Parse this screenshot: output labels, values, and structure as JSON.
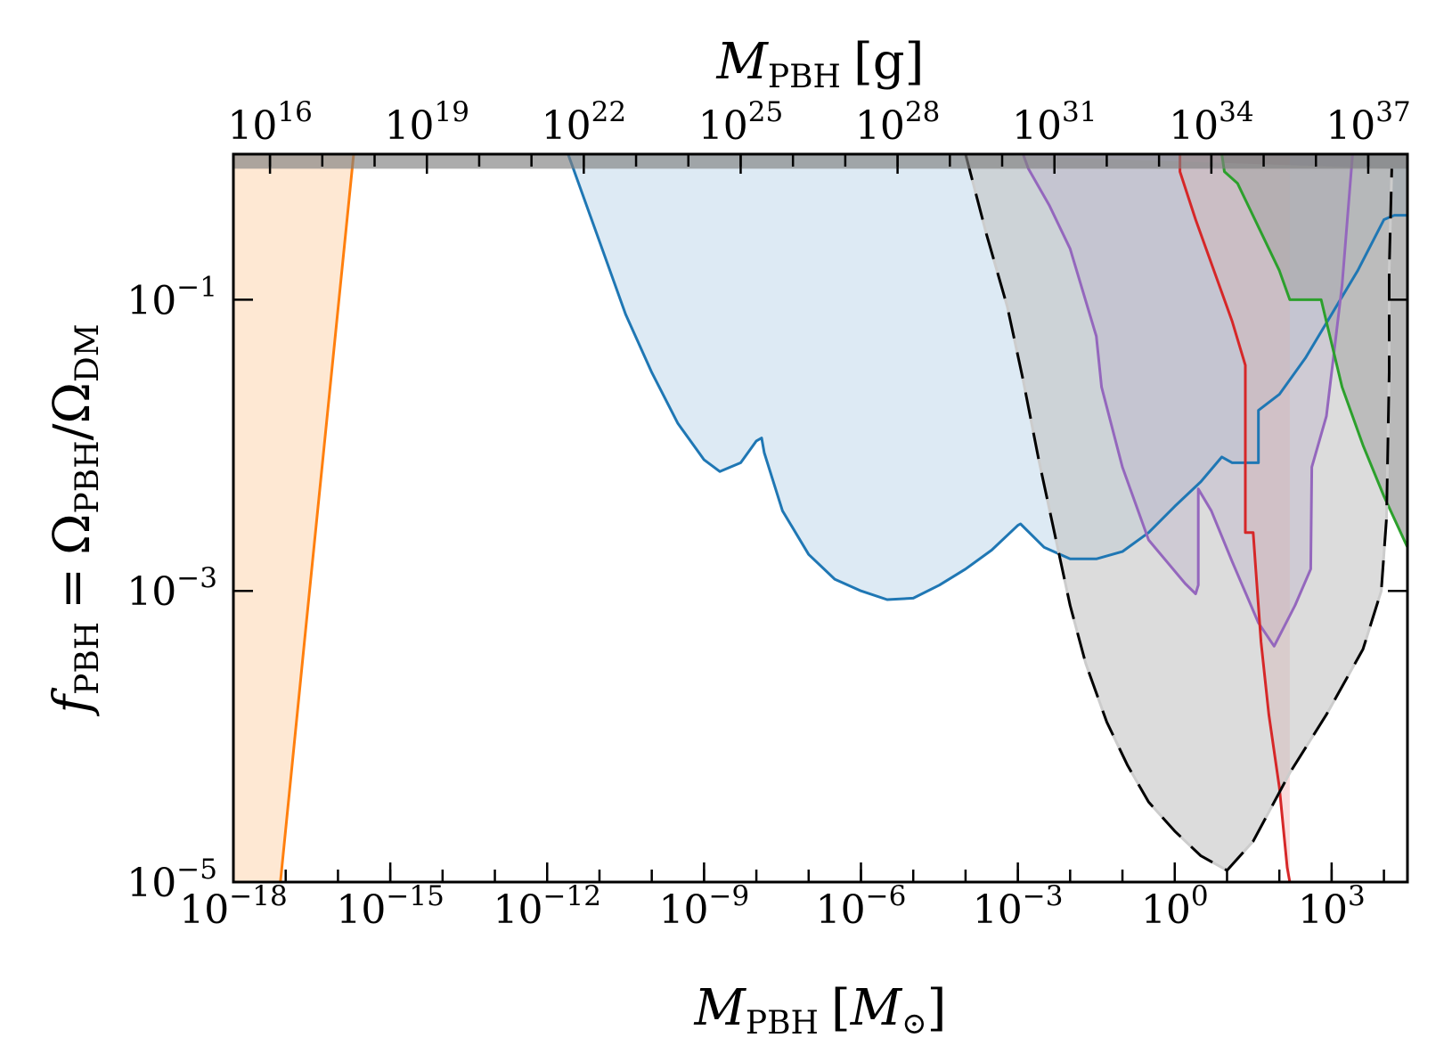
{
  "chart_data": {
    "type": "area",
    "xlabel_bottom": {
      "main": "M",
      "sub": "PBH",
      "unit_open": "[",
      "unit": "M",
      "unit_sub": "⊙",
      "unit_close": "]"
    },
    "xlabel_top": {
      "main": "M",
      "sub": "PBH",
      "unit": "[g]"
    },
    "ylabel": {
      "f": "f",
      "f_sub": "PBH",
      "eq": "=",
      "omega1": "Ω",
      "omega1_sub": "PBH",
      "slash": "/",
      "omega2": "Ω",
      "omega2_sub": "DM"
    },
    "x_scale": "log",
    "y_scale": "log",
    "x_range_log10": [
      -18,
      4.45
    ],
    "y_range_log10": [
      -5,
      0
    ],
    "x_top_offset_log10": 33.3,
    "grid": false,
    "x_ticks_bottom": [
      {
        "base": "10",
        "exp": "−18",
        "log": -18
      },
      {
        "base": "10",
        "exp": "−15",
        "log": -15
      },
      {
        "base": "10",
        "exp": "−12",
        "log": -12
      },
      {
        "base": "10",
        "exp": "−9",
        "log": -9
      },
      {
        "base": "10",
        "exp": "−6",
        "log": -6
      },
      {
        "base": "10",
        "exp": "−3",
        "log": -3
      },
      {
        "base": "10",
        "exp": "0",
        "log": 0
      },
      {
        "base": "10",
        "exp": "3",
        "log": 3
      }
    ],
    "x_ticks_top": [
      {
        "base": "10",
        "exp": "16",
        "log": 16
      },
      {
        "base": "10",
        "exp": "19",
        "log": 19
      },
      {
        "base": "10",
        "exp": "22",
        "log": 22
      },
      {
        "base": "10",
        "exp": "25",
        "log": 25
      },
      {
        "base": "10",
        "exp": "28",
        "log": 28
      },
      {
        "base": "10",
        "exp": "31",
        "log": 31
      },
      {
        "base": "10",
        "exp": "34",
        "log": 34
      },
      {
        "base": "10",
        "exp": "37",
        "log": 37
      }
    ],
    "y_ticks": [
      {
        "base": "10",
        "exp": "−1",
        "log": -1
      },
      {
        "base": "10",
        "exp": "−3",
        "log": -3
      },
      {
        "base": "10",
        "exp": "−5",
        "log": -5
      }
    ],
    "top_band": {
      "color": "#7f7f7f",
      "opacity": 0.65,
      "y_log_from": -0.1,
      "y_log_to": 0
    },
    "series": [
      {
        "color": "#ff7f0e",
        "fill": "#fdd9b5",
        "fill_opacity": 0.6,
        "region": "left",
        "points_log": [
          [
            -17.1,
            -5
          ],
          [
            -16.6,
            -3.2
          ],
          [
            -15.7,
            0
          ]
        ]
      },
      {
        "color": "#1f77b4",
        "fill": "#a6c8e2",
        "fill_opacity": 0.38,
        "region": "above",
        "points_log": [
          [
            -11.6,
            0
          ],
          [
            -11.5,
            -0.1
          ],
          [
            -11.0,
            -0.6
          ],
          [
            -10.5,
            -1.1
          ],
          [
            -10.0,
            -1.5
          ],
          [
            -9.5,
            -1.85
          ],
          [
            -9.0,
            -2.1
          ],
          [
            -8.7,
            -2.18
          ],
          [
            -8.3,
            -2.12
          ],
          [
            -8.0,
            -1.97
          ],
          [
            -7.9,
            -1.95
          ],
          [
            -7.85,
            -2.05
          ],
          [
            -7.5,
            -2.45
          ],
          [
            -7.0,
            -2.75
          ],
          [
            -6.5,
            -2.92
          ],
          [
            -6.0,
            -3.0
          ],
          [
            -5.5,
            -3.06
          ],
          [
            -5.0,
            -3.05
          ],
          [
            -4.5,
            -2.96
          ],
          [
            -4.0,
            -2.85
          ],
          [
            -3.5,
            -2.72
          ],
          [
            -3.0,
            -2.55
          ],
          [
            -2.95,
            -2.54
          ],
          [
            -2.5,
            -2.7
          ],
          [
            -2.0,
            -2.78
          ],
          [
            -1.5,
            -2.78
          ],
          [
            -1.0,
            -2.73
          ],
          [
            -0.5,
            -2.6
          ],
          [
            0,
            -2.42
          ],
          [
            0.5,
            -2.25
          ],
          [
            0.9,
            -2.08
          ],
          [
            1.1,
            -2.12
          ],
          [
            1.6,
            -2.12
          ],
          [
            1.6,
            -1.76
          ],
          [
            2.0,
            -1.65
          ],
          [
            2.5,
            -1.4
          ],
          [
            3.0,
            -1.1
          ],
          [
            3.5,
            -0.8
          ],
          [
            4.0,
            -0.45
          ],
          [
            4.2,
            -0.42
          ],
          [
            4.45,
            -0.42
          ]
        ]
      },
      {
        "color": "#9467bd",
        "fill": "#b29ccf",
        "fill_opacity": 0.38,
        "region": "above",
        "points_log": [
          [
            -2.9,
            0
          ],
          [
            -2.8,
            -0.1
          ],
          [
            -2.4,
            -0.35
          ],
          [
            -2.0,
            -0.65
          ],
          [
            -1.5,
            -1.25
          ],
          [
            -1.4,
            -1.6
          ],
          [
            -1.0,
            -2.15
          ],
          [
            -0.5,
            -2.65
          ],
          [
            0.2,
            -2.95
          ],
          [
            0.4,
            -3.02
          ],
          [
            0.45,
            -2.96
          ],
          [
            0.45,
            -2.3
          ],
          [
            0.7,
            -2.45
          ],
          [
            1.1,
            -2.8
          ],
          [
            1.6,
            -3.22
          ],
          [
            1.9,
            -3.38
          ],
          [
            2.3,
            -3.1
          ],
          [
            2.6,
            -2.85
          ],
          [
            2.62,
            -2.15
          ],
          [
            2.9,
            -1.8
          ],
          [
            3.2,
            -0.9
          ],
          [
            3.3,
            -0.45
          ],
          [
            3.4,
            0
          ]
        ]
      },
      {
        "color": "#d62728",
        "fill": "#eea2a3",
        "fill_opacity": 0.38,
        "region": "above",
        "points_log": [
          [
            0.1,
            0
          ],
          [
            0.1,
            -0.12
          ],
          [
            0.4,
            -0.45
          ],
          [
            0.8,
            -0.85
          ],
          [
            1.1,
            -1.15
          ],
          [
            1.35,
            -1.45
          ],
          [
            1.35,
            -2.6
          ],
          [
            1.5,
            -2.6
          ],
          [
            1.55,
            -2.85
          ],
          [
            1.65,
            -3.35
          ],
          [
            1.8,
            -3.85
          ],
          [
            2.0,
            -4.35
          ],
          [
            2.15,
            -4.9
          ],
          [
            2.2,
            -5
          ]
        ]
      },
      {
        "color": "#2ca02c",
        "fill": "#7f7f7f",
        "fill_opacity": 0.55,
        "region": "above",
        "points_log": [
          [
            0.9,
            0
          ],
          [
            0.95,
            -0.12
          ],
          [
            1.2,
            -0.2
          ],
          [
            1.6,
            -0.5
          ],
          [
            2.0,
            -0.8
          ],
          [
            2.2,
            -1.0
          ],
          [
            2.8,
            -1.0
          ],
          [
            3.2,
            -1.6
          ],
          [
            3.6,
            -2.0
          ],
          [
            4.0,
            -2.35
          ],
          [
            4.45,
            -2.7
          ]
        ]
      },
      {
        "color": "#000000",
        "fill": "#bfbfbf",
        "fill_opacity": 0.55,
        "region": "closed",
        "dashed": true,
        "points_log": [
          [
            -4.0,
            0
          ],
          [
            -3.6,
            -0.55
          ],
          [
            -3.2,
            -1.05
          ],
          [
            -2.9,
            -1.55
          ],
          [
            -2.6,
            -2.1
          ],
          [
            -2.3,
            -2.6
          ],
          [
            -2.0,
            -3.1
          ],
          [
            -1.7,
            -3.5
          ],
          [
            -1.3,
            -3.9
          ],
          [
            -0.9,
            -4.2
          ],
          [
            -0.5,
            -4.45
          ],
          [
            0.0,
            -4.65
          ],
          [
            0.5,
            -4.82
          ],
          [
            1.0,
            -4.92
          ],
          [
            1.5,
            -4.72
          ],
          [
            2.2,
            -4.25
          ],
          [
            2.9,
            -3.85
          ],
          [
            3.6,
            -3.4
          ],
          [
            3.95,
            -3.0
          ],
          [
            4.05,
            -2.5
          ],
          [
            4.1,
            -1.5
          ],
          [
            4.1,
            -0.8
          ],
          [
            4.15,
            -0.1
          ]
        ]
      }
    ]
  }
}
